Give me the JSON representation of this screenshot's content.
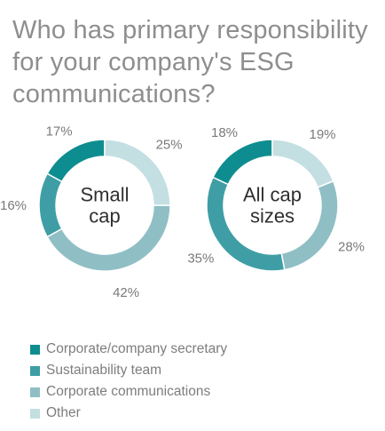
{
  "title_lines": [
    "Who has primary responsibility",
    "for your company's ESG",
    "communications?"
  ],
  "colors": {
    "Corporate/company secretary": "#0e8d90",
    "Sustainability team": "#3f9ea5",
    "Corporate communications": "#8fbfc5",
    "Other": "#c3dfe2"
  },
  "chart_data": [
    {
      "type": "pie",
      "center_label_lines": [
        "Small",
        "cap"
      ],
      "categories": [
        "Corporate/company secretary",
        "Sustainability team",
        "Corporate communications",
        "Other"
      ],
      "values": [
        17,
        16,
        42,
        25
      ],
      "data_labels": [
        "17%",
        "16%",
        "42%",
        "25%"
      ]
    },
    {
      "type": "pie",
      "center_label_lines": [
        "All cap",
        "sizes"
      ],
      "categories": [
        "Corporate/company secretary",
        "Sustainability team",
        "Corporate communications",
        "Other"
      ],
      "values": [
        18,
        35,
        28,
        19
      ],
      "data_labels": [
        "18%",
        "35%",
        "28%",
        "19%"
      ]
    }
  ],
  "legend": [
    {
      "label": "Corporate/company secretary",
      "color": "#0e8d90"
    },
    {
      "label": "Sustainability team",
      "color": "#3f9ea5"
    },
    {
      "label": "Corporate communications",
      "color": "#8fbfc5"
    },
    {
      "label": "Other",
      "color": "#c3dfe2"
    }
  ]
}
